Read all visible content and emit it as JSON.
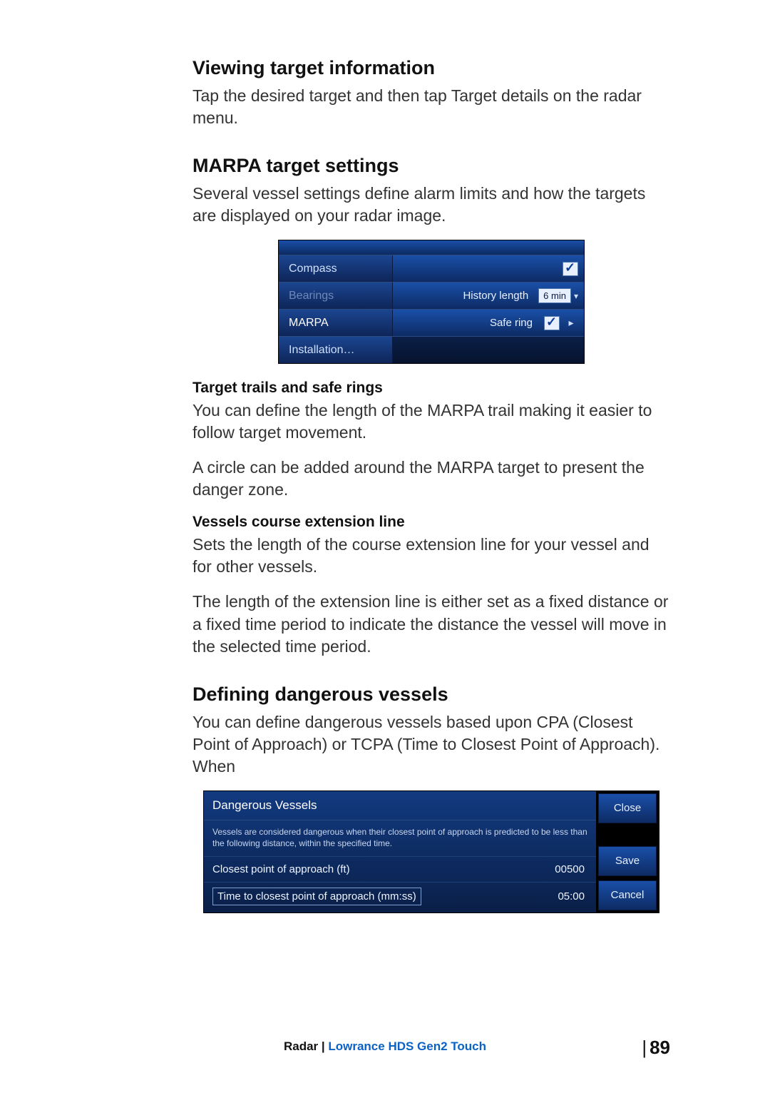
{
  "sections": {
    "s1": {
      "title": "Viewing target information",
      "p1": "Tap the desired target and then tap Target details on the radar menu."
    },
    "s2": {
      "title": "MARPA target settings",
      "p1": "Several vessel settings define alarm limits and how the targets are displayed on your radar image."
    },
    "shot1": {
      "row_compass": "Compass",
      "row_bearings": "Bearings",
      "row_marpa": "MARPA",
      "row_install": "Installation…",
      "history_label": "History length",
      "history_value": "6 min",
      "safering_label": "Safe ring"
    },
    "s3": {
      "title": "Target trails and safe rings",
      "p1": "You can define the length of the MARPA trail making it easier to follow target movement.",
      "p2": "A circle can be added around the MARPA target to present the danger zone."
    },
    "s4": {
      "title": "Vessels course extension line",
      "p1": "Sets the length of the course extension line for your vessel and for other vessels.",
      "p2": "The length of the extension line is either set as a fixed distance or a fixed time period to indicate the distance the vessel will move in the selected time period."
    },
    "s5": {
      "title": "Defining dangerous vessels",
      "p1": "You can define dangerous vessels based upon CPA (Closest Point of Approach) or TCPA (Time to Closest Point of Approach). When"
    },
    "shot2": {
      "title": "Dangerous Vessels",
      "help": "Vessels are considered dangerous when their closest point of approach is predicted to be less than the following distance, within the specified time.",
      "f1_label": "Closest point of approach (ft)",
      "f1_value": "00500",
      "f2_label": "Time to closest point of approach (mm:ss)",
      "f2_value": "05:00",
      "btn_close": "Close",
      "btn_save": "Save",
      "btn_cancel": "Cancel"
    },
    "footer": {
      "left": "Radar | ",
      "right": "Lowrance HDS Gen2 Touch",
      "page": "89"
    }
  },
  "colors": {
    "heading": "#111111",
    "body": "#333333",
    "link_blue": "#0a62c4",
    "ui_grad_top": "#1a4fa8",
    "ui_grad_bot": "#0d2b64",
    "ui_dark": "#0a1f48"
  }
}
